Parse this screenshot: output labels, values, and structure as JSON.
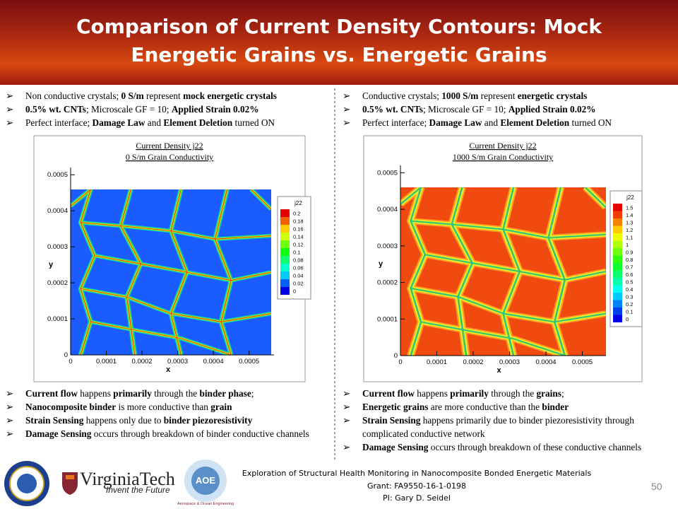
{
  "header": {
    "title": "Comparison of Current Density Contours: Mock Energetic Grains vs. Energetic Grains"
  },
  "columns": [
    {
      "top_bullets": [
        {
          "segments": [
            {
              "text": "Non conductive crystals; "
            },
            {
              "text": "0 S/m",
              "bold": true
            },
            {
              "text": " represent "
            },
            {
              "text": "mock energetic crystals",
              "bold": true
            }
          ]
        },
        {
          "segments": [
            {
              "text": "0.5% wt. CNTs",
              "bold": true
            },
            {
              "text": "; Microscale GF = 10; "
            },
            {
              "text": "Applied Strain 0.02%",
              "bold": true
            }
          ]
        },
        {
          "segments": [
            {
              "text": "Perfect interface; "
            },
            {
              "text": "Damage Law",
              "bold": true
            },
            {
              "text": " and "
            },
            {
              "text": "Element Deletion",
              "bold": true
            },
            {
              "text": " turned ON"
            }
          ]
        }
      ],
      "plot": {
        "title": "Current Density j22",
        "subtitle": "0 S/m Grain Conductivity",
        "xlabel": "x",
        "ylabel": "y",
        "xlim": [
          0,
          0.00057
        ],
        "ylim": [
          0,
          0.00052
        ],
        "xticks": [
          0,
          0.0001,
          0.0002,
          0.0003,
          0.0004,
          0.0005
        ],
        "yticks": [
          0,
          0.0001,
          0.0002,
          0.0003,
          0.0004,
          0.0005
        ],
        "colorbar": {
          "label": "j22",
          "levels": [
            0.2,
            0.18,
            0.16,
            0.14,
            0.12,
            0.1,
            0.08,
            0.06,
            0.04,
            0.02,
            0
          ]
        }
      },
      "bottom_bullets": [
        {
          "segments": [
            {
              "text": "Current flow",
              "bold": true
            },
            {
              "text": " happens "
            },
            {
              "text": "primarily",
              "bold": true
            },
            {
              "text": " through the "
            },
            {
              "text": "binder phase",
              "bold": true
            },
            {
              "text": ";"
            }
          ]
        },
        {
          "segments": [
            {
              "text": "Nanocomposite binder",
              "bold": true
            },
            {
              "text": " is more conductive than "
            },
            {
              "text": "grain",
              "bold": true
            }
          ]
        },
        {
          "segments": [
            {
              "text": "Strain Sensing",
              "bold": true
            },
            {
              "text": " happens only due to "
            },
            {
              "text": "binder piezoresistivity",
              "bold": true
            }
          ]
        },
        {
          "segments": [
            {
              "text": "Damage Sensing",
              "bold": true
            },
            {
              "text": " occurs through breakdown of binder conductive channels"
            }
          ]
        }
      ]
    },
    {
      "top_bullets": [
        {
          "segments": [
            {
              "text": "Conductive crystals; "
            },
            {
              "text": "1000 S/m",
              "bold": true
            },
            {
              "text": " represent "
            },
            {
              "text": "energetic crystals",
              "bold": true
            }
          ]
        },
        {
          "segments": [
            {
              "text": "0.5% wt. CNTs",
              "bold": true
            },
            {
              "text": "; Microscale GF = 10; "
            },
            {
              "text": "Applied Strain 0.02%",
              "bold": true
            }
          ]
        },
        {
          "segments": [
            {
              "text": "Perfect interface; "
            },
            {
              "text": "Damage Law",
              "bold": true
            },
            {
              "text": " and "
            },
            {
              "text": "Element Deletion",
              "bold": true
            },
            {
              "text": " turned ON"
            }
          ]
        }
      ],
      "plot": {
        "title": "Current Density j22",
        "subtitle": "1000 S/m Grain Conductivity",
        "xlabel": "x",
        "ylabel": "y",
        "xlim": [
          0,
          0.000565
        ],
        "ylim": [
          0,
          0.00052
        ],
        "xticks": [
          0,
          0.0001,
          0.0002,
          0.0003,
          0.0004,
          0.0005
        ],
        "yticks": [
          0,
          0.0001,
          0.0002,
          0.0003,
          0.0004,
          0.0005
        ],
        "colorbar": {
          "label": "j22",
          "levels": [
            1.5,
            1.4,
            1.3,
            1.2,
            1.1,
            1,
            0.9,
            0.8,
            0.7,
            0.6,
            0.5,
            0.4,
            0.3,
            0.2,
            0.1,
            0
          ]
        }
      },
      "bottom_bullets": [
        {
          "segments": [
            {
              "text": "Current flow",
              "bold": true
            },
            {
              "text": " happens "
            },
            {
              "text": "primarily",
              "bold": true
            },
            {
              "text": " through the "
            },
            {
              "text": "grains",
              "bold": true
            },
            {
              "text": ";"
            }
          ]
        },
        {
          "segments": [
            {
              "text": "Energetic grains",
              "bold": true
            },
            {
              "text": " are more conductive than the "
            },
            {
              "text": "binder",
              "bold": true
            }
          ]
        },
        {
          "segments": [
            {
              "text": "Strain Sensing",
              "bold": true
            },
            {
              "text": " happens primarily due to binder piezoresistivity through complicated conductive network"
            }
          ]
        },
        {
          "segments": [
            {
              "text": "Damage Sensing",
              "bold": true
            },
            {
              "text": " occurs through breakdown of these conductive channels"
            }
          ]
        }
      ]
    }
  ],
  "footer": {
    "university": "VirginiaTech",
    "motto": "Invent the Future",
    "dept_logo": "AOE",
    "dept_name": "Aerospace & Ocean Engineering",
    "lines": [
      "Exploration of Structural Health Monitoring in Nanocomposite Bonded Energetic Materials",
      "Grant: FA9550-16-1-0198",
      "PI: Gary D. Seidel"
    ],
    "page_number": "50"
  }
}
